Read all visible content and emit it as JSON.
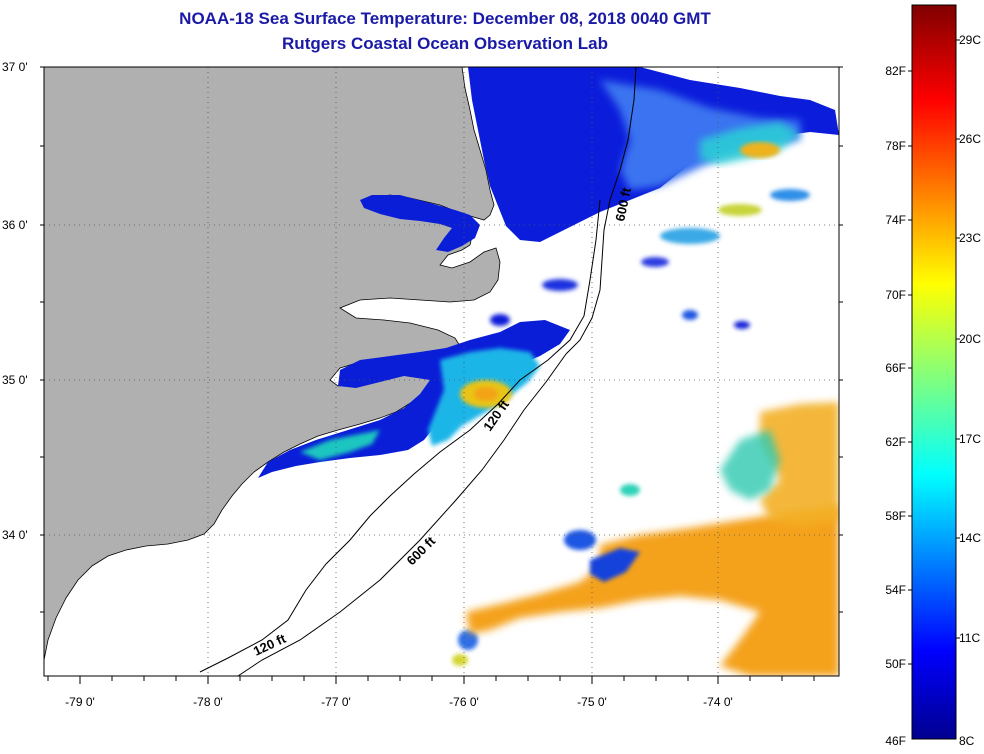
{
  "title": {
    "line1": "NOAA-18 Sea Surface Temperature:  December 08, 2018 0040 GMT",
    "line2": "Rutgers Coastal Ocean Observation Lab"
  },
  "map": {
    "lat_labels": [
      "37 0'",
      "36 0'",
      "35 0'",
      "34 0'"
    ],
    "lon_labels": [
      "-79 0'",
      "-78 0'",
      "-77 0'",
      "-76 0'",
      "-75 0'",
      "-74 0'"
    ],
    "contour_labels": [
      "600 ft",
      "120 ft",
      "600 ft",
      "120 ft"
    ]
  },
  "colorbar": {
    "fahrenheit_labels": [
      "82F",
      "78F",
      "74F",
      "70F",
      "66F",
      "62F",
      "58F",
      "54F",
      "50F",
      "46F"
    ],
    "celsius_labels": [
      "29C",
      "26C",
      "23C",
      "20C",
      "17C",
      "14C",
      "11C",
      "8C"
    ]
  },
  "colors": {
    "title": "#1a1aa6",
    "land": "#b0b0b0",
    "ocean_cloud": "#ffffff"
  }
}
